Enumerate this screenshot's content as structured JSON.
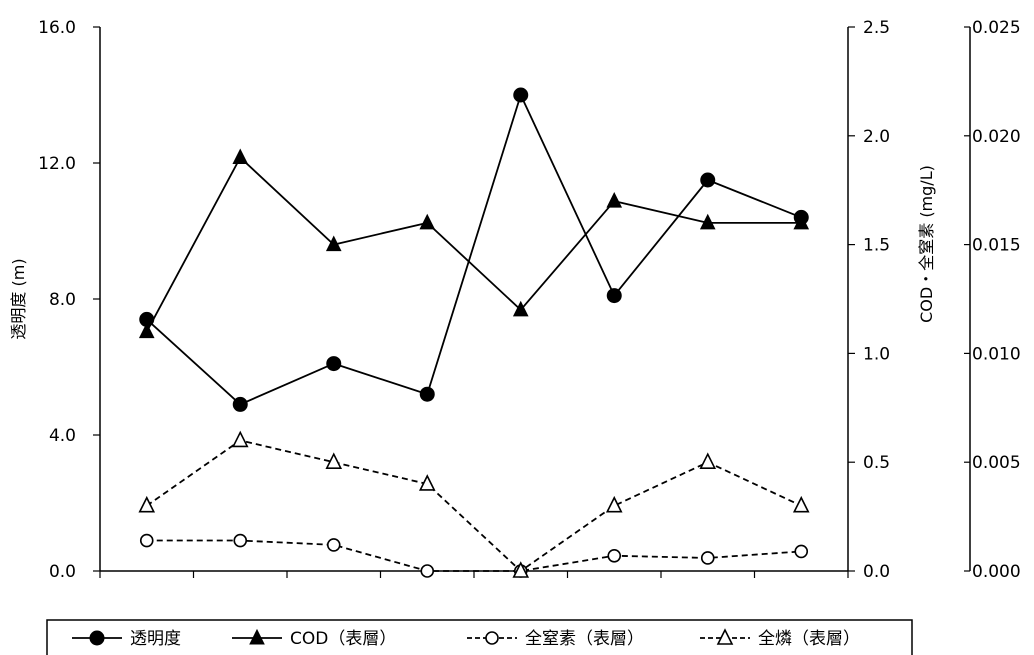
{
  "chart_data": {
    "type": "line",
    "title": "",
    "x": [
      1,
      2,
      3,
      4,
      5,
      6,
      7,
      8
    ],
    "axes": {
      "left": {
        "label": "透明度 (m)",
        "ylim": [
          0,
          16
        ],
        "ticks": [
          "0.0",
          "4.0",
          "8.0",
          "12.0",
          "16.0"
        ]
      },
      "right1": {
        "label": "COD・全窒素 (mg/L)",
        "ylim": [
          0,
          2.5
        ],
        "ticks": [
          "0.0",
          "0.5",
          "1.0",
          "1.5",
          "2.0",
          "2.5"
        ]
      },
      "right2": {
        "label": "",
        "ylim": [
          0,
          0.025
        ],
        "ticks": [
          "0.000",
          "0.005",
          "0.010",
          "0.015",
          "0.020",
          "0.025"
        ]
      }
    },
    "series": [
      {
        "name": "透明度",
        "axis": "left",
        "values": [
          7.4,
          4.9,
          6.1,
          5.2,
          14.0,
          8.1,
          11.5,
          10.4
        ],
        "line": "solid",
        "marker": "circle-filled"
      },
      {
        "name": "COD (表層)",
        "axis": "right1",
        "values": [
          1.1,
          1.9,
          1.5,
          1.6,
          1.2,
          1.7,
          1.6,
          1.6
        ],
        "line": "solid",
        "marker": "triangle-filled"
      },
      {
        "name": "全窒素 (表層)",
        "axis": "right1",
        "values": [
          0.14,
          0.14,
          0.12,
          0.0,
          0.0,
          0.07,
          0.06,
          0.09
        ],
        "line": "dashed",
        "marker": "circle-open"
      },
      {
        "name": "全燐 (表層)",
        "axis": "right2",
        "values": [
          0.003,
          0.006,
          0.005,
          0.004,
          0.0,
          0.003,
          0.005,
          0.003
        ],
        "line": "dashed",
        "marker": "triangle-open"
      }
    ],
    "legend": {
      "placement": "bottom",
      "entries": [
        "透明度",
        "COD（表層）",
        "全窒素（表層）",
        "全燐（表層）"
      ]
    },
    "grid": false
  }
}
